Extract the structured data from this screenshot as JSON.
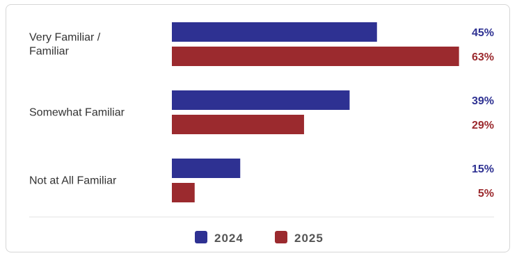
{
  "chart_data": {
    "type": "bar",
    "orientation": "horizontal",
    "categories": [
      [
        "Very Familiar /",
        "Familiar"
      ],
      [
        "Somewhat Familiar"
      ],
      [
        "Not at All Familiar"
      ]
    ],
    "series": [
      {
        "name": "2024",
        "values": [
          45,
          39,
          15
        ],
        "labels": [
          "45%",
          "39%",
          "15%"
        ],
        "color": "#2e3192"
      },
      {
        "name": "2025",
        "values": [
          63,
          29,
          5
        ],
        "labels": [
          "63%",
          "29%",
          "5%"
        ],
        "color": "#9b2a2e"
      }
    ],
    "xlim": [
      0,
      100
    ],
    "unit": "%",
    "legend": {
      "position": "bottom"
    },
    "grid": false
  }
}
